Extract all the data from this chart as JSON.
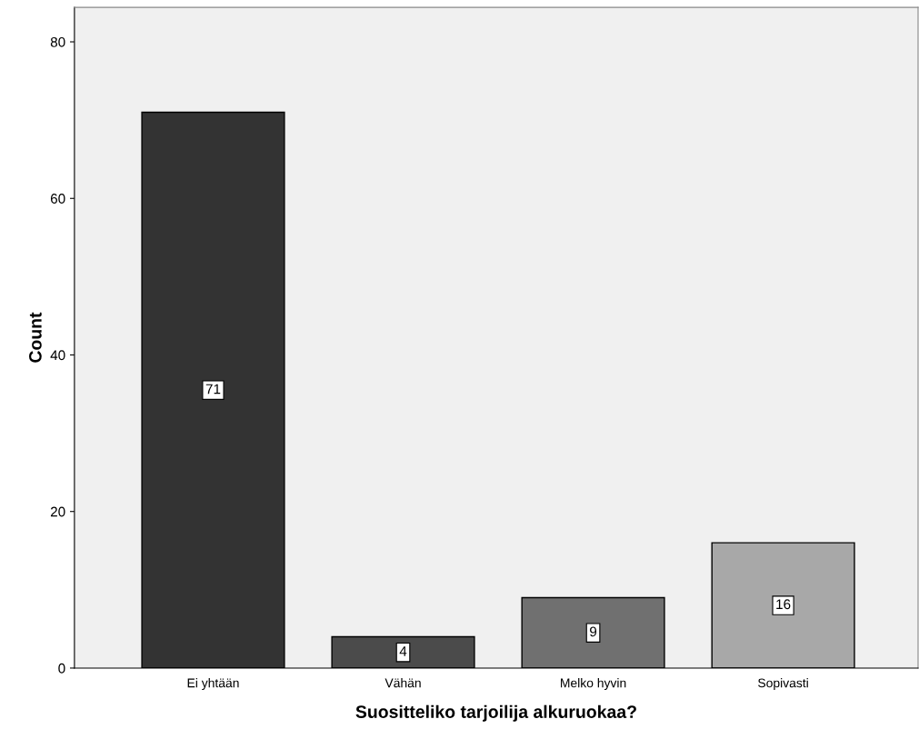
{
  "chart_data": {
    "type": "bar",
    "xlabel": "Suositteliko tarjoilija alkuruokaa?",
    "ylabel": "Count",
    "categories": [
      "Ei yhtään",
      "Vähän",
      "Melko hyvin",
      "Sopivasti"
    ],
    "values": [
      71,
      4,
      9,
      16
    ],
    "colors": [
      "#333333",
      "#4b4b4b",
      "#707070",
      "#a8a8a8"
    ],
    "ylim": [
      0,
      84.4
    ],
    "yticks": [
      0,
      20,
      40,
      60,
      80
    ],
    "data_labels": true,
    "grid": false
  }
}
